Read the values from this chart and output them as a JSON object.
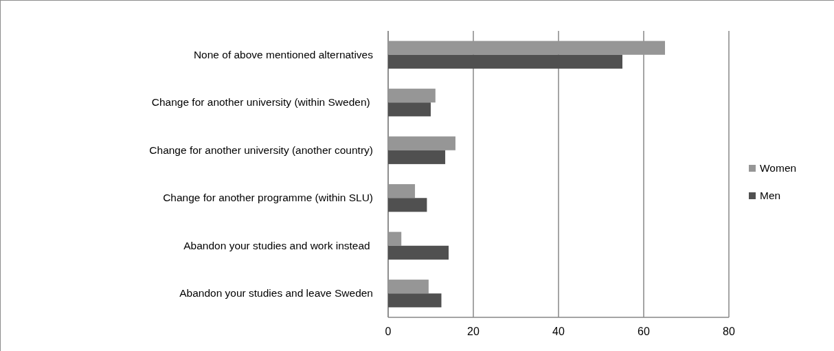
{
  "chart_data": {
    "type": "bar",
    "orientation": "horizontal",
    "categories": [
      "None of above mentioned alternatives",
      "Change for another university (within Sweden) ",
      "Change for another university (another country)",
      "Change for another programme (within SLU)",
      "Abandon your studies and work instead ",
      "Abandon your studies and leave Sweden"
    ],
    "series": [
      {
        "name": "Women",
        "color": "#969696",
        "values": [
          65,
          11.1,
          15.8,
          6.3,
          3.1,
          9.5
        ]
      },
      {
        "name": "Men",
        "color": "#505050",
        "values": [
          55,
          10,
          13.4,
          9.1,
          14.2,
          12.5
        ]
      }
    ],
    "xlim": [
      0,
      80
    ],
    "xticks": [
      0,
      20,
      40,
      60,
      80
    ],
    "grid": "x",
    "legend": "right"
  }
}
